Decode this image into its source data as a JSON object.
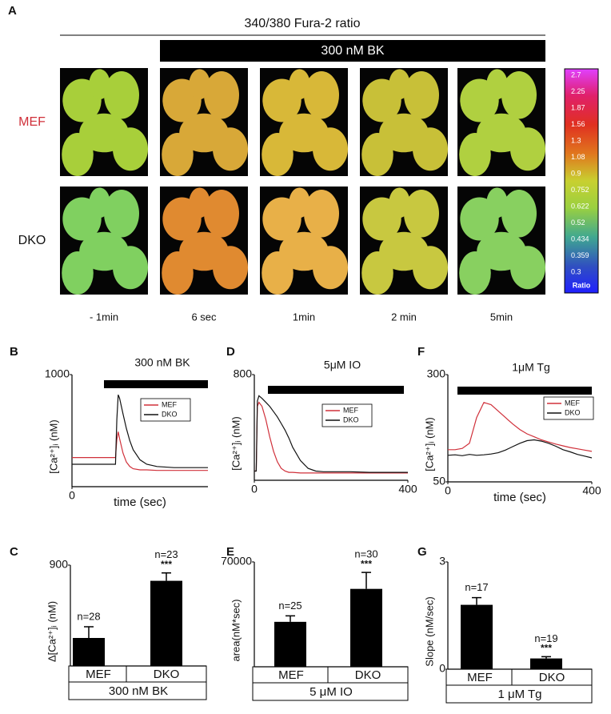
{
  "panel_a": {
    "panel": "A",
    "title": "340/380 Fura-2 ratio",
    "treatment": "300 nM BK",
    "rows": [
      "MEF",
      "DKO"
    ],
    "times": [
      "- 1min",
      "6 sec",
      "1min",
      "2 min",
      "5min"
    ],
    "colorbar": {
      "labels": [
        "2.7",
        "2.25",
        "1.87",
        "1.56",
        "1.3",
        "1.08",
        "0.9",
        "0.752",
        "0.622",
        "0.52",
        "0.434",
        "0.359",
        "0.3"
      ],
      "title": "Ratio"
    }
  },
  "chart_data": [
    {
      "type": "line",
      "panel": "B",
      "annotation": "300 nM BK",
      "ylabel": "[Ca²⁺]ᵢ (nM)",
      "xlabel": "time (sec)",
      "xlim": [
        0,
        400
      ],
      "xticks": [
        0
      ],
      "ylim": [
        0,
        1000
      ],
      "yticks": [
        1000
      ],
      "x": [
        0,
        20,
        40,
        60,
        80,
        100,
        120,
        128,
        132,
        136,
        140,
        150,
        160,
        170,
        180,
        200,
        220,
        250,
        300,
        350,
        400
      ],
      "series": [
        {
          "name": "MEF",
          "color": "#d0303a",
          "values": [
            260,
            260,
            260,
            260,
            260,
            260,
            260,
            260,
            420,
            490,
            430,
            300,
            220,
            180,
            160,
            150,
            150,
            145,
            145,
            145,
            145
          ]
        },
        {
          "name": "DKO",
          "color": "#111111",
          "values": [
            200,
            200,
            200,
            200,
            200,
            200,
            200,
            200,
            600,
            820,
            790,
            650,
            520,
            410,
            330,
            240,
            200,
            180,
            170,
            170,
            170
          ]
        }
      ]
    },
    {
      "type": "line",
      "panel": "D",
      "annotation": "5μM IO",
      "ylabel": "[Ca²⁺]ᵢ (nM)",
      "xlim": [
        0,
        400
      ],
      "xticks": [
        0,
        400
      ],
      "ylim": [
        0,
        800
      ],
      "yticks": [
        800
      ],
      "x": [
        0,
        5,
        8,
        12,
        20,
        30,
        40,
        50,
        60,
        70,
        80,
        90,
        100,
        120,
        140,
        160,
        180,
        200,
        250,
        300,
        350,
        400
      ],
      "series": [
        {
          "name": "MEF",
          "color": "#d0303a",
          "values": [
            70,
            70,
            560,
            590,
            560,
            460,
            330,
            220,
            140,
            90,
            70,
            60,
            60,
            55,
            55,
            55,
            55,
            55,
            55,
            55,
            55,
            55
          ]
        },
        {
          "name": "DKO",
          "color": "#111111",
          "values": [
            70,
            70,
            600,
            640,
            620,
            590,
            560,
            520,
            480,
            430,
            380,
            320,
            250,
            150,
            90,
            70,
            65,
            65,
            65,
            60,
            60,
            60
          ]
        }
      ]
    },
    {
      "type": "line",
      "panel": "F",
      "annotation": "1μM Tg",
      "ylabel": "[Ca²⁺]ᵢ (nM)",
      "xlabel": "time (sec)",
      "xlim": [
        0,
        400
      ],
      "xticks": [
        0,
        400
      ],
      "ylim": [
        50,
        300
      ],
      "yticks": [
        50,
        300
      ],
      "x": [
        0,
        20,
        40,
        60,
        80,
        100,
        120,
        140,
        160,
        180,
        200,
        220,
        240,
        260,
        280,
        300,
        320,
        340,
        360,
        380,
        400
      ],
      "series": [
        {
          "name": "MEF",
          "color": "#d0303a",
          "values": [
            125,
            125,
            128,
            140,
            200,
            235,
            230,
            215,
            200,
            185,
            172,
            162,
            155,
            148,
            143,
            138,
            134,
            130,
            127,
            124,
            121
          ]
        },
        {
          "name": "DKO",
          "color": "#111111",
          "values": [
            112,
            113,
            111,
            114,
            112,
            113,
            115,
            118,
            124,
            132,
            140,
            146,
            148,
            145,
            140,
            133,
            125,
            120,
            114,
            110,
            106
          ]
        }
      ]
    },
    {
      "type": "bar",
      "panel": "C",
      "ylabel": "Δ[Ca²⁺]ᵢ (nM)",
      "ylim": [
        0,
        900
      ],
      "yticks": [
        900
      ],
      "categories": [
        "MEF",
        "DKO"
      ],
      "values": [
        250,
        760
      ],
      "errors": [
        100,
        70
      ],
      "color": "#000000",
      "n_labels": [
        "n=28",
        "n=23"
      ],
      "significance": [
        null,
        "***"
      ],
      "footer": "300 nM BK"
    },
    {
      "type": "bar",
      "panel": "E",
      "ylabel": "area(nM*sec)",
      "ylim": [
        0,
        70000
      ],
      "yticks": [
        70000
      ],
      "categories": [
        "MEF",
        "DKO"
      ],
      "values": [
        30000,
        52000
      ],
      "errors": [
        4000,
        11000
      ],
      "color": "#000000",
      "n_labels": [
        "n=25",
        "n=30"
      ],
      "significance": [
        null,
        "***"
      ],
      "footer": "5 μM IO"
    },
    {
      "type": "bar",
      "panel": "G",
      "ylabel": "Slope (nM/sec)",
      "ylim": [
        0,
        3
      ],
      "yticks": [
        0,
        3
      ],
      "categories": [
        "MEF",
        "DKO"
      ],
      "values": [
        1.8,
        0.3
      ],
      "errors": [
        0.2,
        0.05
      ],
      "color": "#000000",
      "n_labels": [
        "n=17",
        "n=19"
      ],
      "significance": [
        null,
        "***"
      ],
      "footer": "1 μM Tg"
    }
  ]
}
